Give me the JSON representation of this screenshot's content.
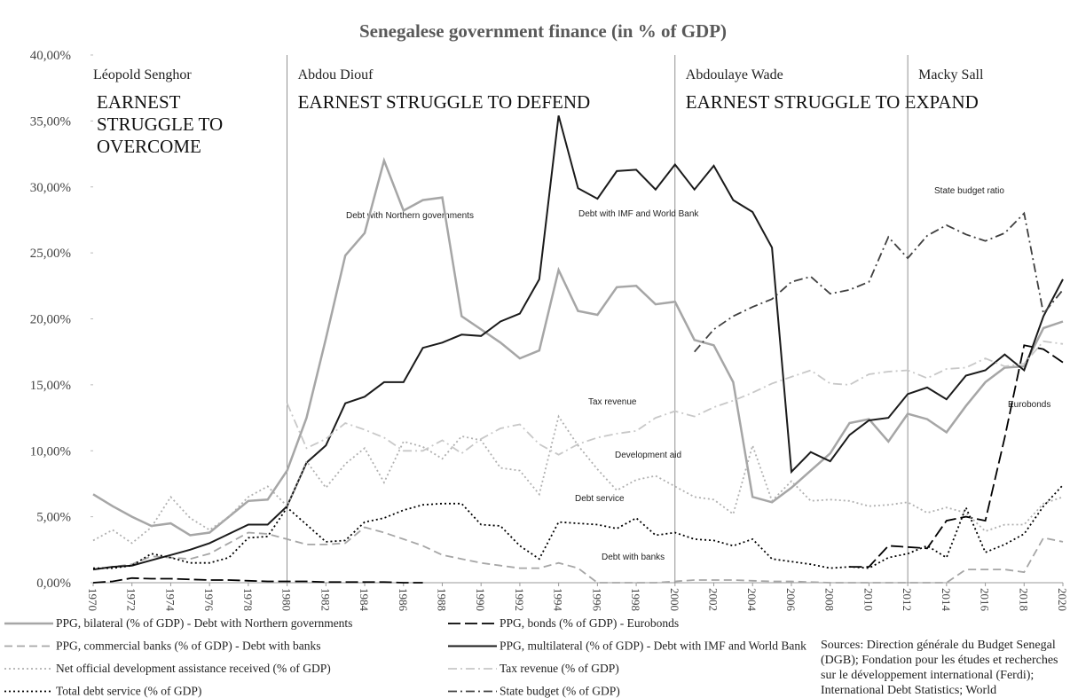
{
  "chart_data": {
    "type": "line",
    "title": "Senegalese government finance (in % of GDP)",
    "x": [
      1970,
      1971,
      1972,
      1973,
      1974,
      1975,
      1976,
      1977,
      1978,
      1979,
      1980,
      1981,
      1982,
      1983,
      1984,
      1985,
      1986,
      1987,
      1988,
      1989,
      1990,
      1991,
      1992,
      1993,
      1994,
      1995,
      1996,
      1997,
      1998,
      1999,
      2000,
      2001,
      2002,
      2003,
      2004,
      2005,
      2006,
      2007,
      2008,
      2009,
      2010,
      2011,
      2012,
      2013,
      2014,
      2015,
      2016,
      2017,
      2018,
      2019,
      2020
    ],
    "xlim": [
      1970,
      2020
    ],
    "xticks": [
      1970,
      1972,
      1974,
      1976,
      1978,
      1980,
      1982,
      1984,
      1986,
      1988,
      1990,
      1992,
      1994,
      1996,
      1998,
      2000,
      2002,
      2004,
      2006,
      2008,
      2010,
      2012,
      2014,
      2016,
      2018,
      2020
    ],
    "ylim": [
      0,
      40
    ],
    "yticks": [
      {
        "value": 0,
        "label": "0,00%"
      },
      {
        "value": 5,
        "label": "5,00%"
      },
      {
        "value": 10,
        "label": "10,00%"
      },
      {
        "value": 15,
        "label": "15,00%"
      },
      {
        "value": 20,
        "label": "20,00%"
      },
      {
        "value": 25,
        "label": "25,00%"
      },
      {
        "value": 30,
        "label": "30,00%"
      },
      {
        "value": 35,
        "label": "35,00%"
      },
      {
        "value": 40,
        "label": "40,00%"
      }
    ],
    "series": [
      {
        "name": "PPG, bilateral (% of GDP) - Debt with Northern governments",
        "color": "#a6a6a6",
        "dash": "double",
        "values": [
          6.7,
          5.8,
          5.0,
          4.3,
          4.5,
          3.6,
          3.8,
          5.0,
          6.2,
          6.3,
          8.5,
          12.5,
          18.5,
          24.8,
          26.5,
          32,
          28.2,
          29,
          29.2,
          20.2,
          19.2,
          18.2,
          17,
          17.6,
          23.7,
          20.6,
          20.3,
          22.4,
          22.5,
          21.1,
          21.3,
          18.4,
          18,
          15.2,
          6.5,
          6.1,
          7.2,
          8.5,
          9.8,
          12.1,
          12.4,
          10.7,
          12.8,
          12.4,
          11.4,
          13.4,
          15.2,
          16.3,
          16.4,
          19.3,
          19.8
        ]
      },
      {
        "name": "PPG, bonds (% of GDP) - Eurobonds",
        "color": "#000000",
        "dash": "longdash",
        "values": [
          0,
          0.1,
          0.35,
          0.3,
          0.3,
          0.25,
          0.2,
          0.2,
          0.15,
          0.1,
          0.1,
          0.1,
          0.05,
          0.05,
          0.05,
          0.05,
          0,
          0,
          null,
          null,
          null,
          null,
          null,
          null,
          null,
          null,
          null,
          null,
          null,
          null,
          null,
          null,
          null,
          null,
          null,
          null,
          null,
          null,
          null,
          1.2,
          1.2,
          2.8,
          2.7,
          2.6,
          4.7,
          5.0,
          4.7,
          11,
          18,
          17.7,
          16.7
        ]
      },
      {
        "name": "PPG, commercial banks (% of GDP) - Debt with banks",
        "color": "#a6a6a6",
        "dash": "dashed",
        "values": [
          1.0,
          1.2,
          1.4,
          2.0,
          1.9,
          1.8,
          2.2,
          3.0,
          3.8,
          3.7,
          3.3,
          2.9,
          2.9,
          3.0,
          4.2,
          3.8,
          3.3,
          2.8,
          2.1,
          1.8,
          1.5,
          1.3,
          1.1,
          1.1,
          1.5,
          1.1,
          0,
          0,
          0,
          0,
          0.1,
          0.2,
          0.2,
          0.2,
          0.15,
          0.1,
          0.1,
          0.05,
          0,
          0,
          0,
          0,
          0,
          0,
          0,
          1.0,
          1.0,
          1.0,
          0.8,
          3.4,
          3.1
        ]
      },
      {
        "name": "PPG, multilateral (% of GDP) - Debt with IMF and World Bank",
        "color": "#1a1a1a",
        "dash": "solid",
        "values": [
          1.0,
          1.2,
          1.3,
          1.7,
          2.1,
          2.5,
          3.0,
          3.7,
          4.4,
          4.4,
          5.8,
          9.1,
          10.4,
          13.6,
          14.1,
          15.2,
          15.2,
          17.8,
          18.2,
          18.8,
          18.7,
          19.8,
          20.4,
          23,
          35.4,
          29.9,
          29.1,
          31.2,
          31.3,
          29.8,
          31.7,
          29.8,
          31.6,
          29,
          28.1,
          25.4,
          8.4,
          9.9,
          9.2,
          11.2,
          12.3,
          12.5,
          14.3,
          14.8,
          13.9,
          15.7,
          16.1,
          17.3,
          16.1,
          20.2,
          23
        ]
      },
      {
        "name": "Net official development assistance received (% of GDP)",
        "color": "#b0b0b0",
        "dash": "dotted",
        "values": [
          3.2,
          4.0,
          3.0,
          4.2,
          6.5,
          4.9,
          4.0,
          5.0,
          6.5,
          7.3,
          5.8,
          9.2,
          7.2,
          9.0,
          10.2,
          7.6,
          10.7,
          10.3,
          9.4,
          11.1,
          10.8,
          8.7,
          8.5,
          6.7,
          12.6,
          10.4,
          8.6,
          7.0,
          7.8,
          8.1,
          7.3,
          6.5,
          6.3,
          5.2,
          10.4,
          6.2,
          7.7,
          6.2,
          6.3,
          6.2,
          5.8,
          5.9,
          6.1,
          5.3,
          5.7,
          5.3,
          3.9,
          4.4,
          4.4,
          6.0,
          6.5
        ]
      },
      {
        "name": "Tax revenue (% of GDP)",
        "color": "#c8c8c8",
        "dash": "dashdot",
        "values": [
          null,
          null,
          null,
          null,
          null,
          null,
          null,
          null,
          null,
          null,
          13.6,
          10.2,
          10.9,
          12.1,
          11.6,
          11.0,
          10.0,
          10.0,
          10.8,
          9.8,
          10.9,
          11.7,
          12.0,
          10.5,
          9.7,
          10.5,
          11.0,
          11.3,
          11.5,
          12.5,
          13.0,
          12.6,
          13.3,
          13.8,
          14.4,
          15.1,
          15.6,
          16.1,
          15.1,
          15.0,
          15.8,
          16.0,
          16.1,
          15.5,
          16.2,
          16.3,
          17.0,
          16.4,
          16.6,
          18.3,
          18.1
        ]
      },
      {
        "name": "Total debt service (% of GDP)",
        "color": "#000000",
        "dash": "dotted",
        "values": [
          1.1,
          1.1,
          1.3,
          2.2,
          1.9,
          1.5,
          1.5,
          1.9,
          3.4,
          3.5,
          5.7,
          4.4,
          3.1,
          3.2,
          4.6,
          4.9,
          5.5,
          5.9,
          6.0,
          6.0,
          4.4,
          4.3,
          2.8,
          1.8,
          4.6,
          4.5,
          4.4,
          4.1,
          4.9,
          3.6,
          3.8,
          3.3,
          3.2,
          2.8,
          3.3,
          1.8,
          1.6,
          1.4,
          1.1,
          1.2,
          1.1,
          1.9,
          2.2,
          2.8,
          1.9,
          5.7,
          2.3,
          2.9,
          3.7,
          5.8,
          7.4
        ]
      },
      {
        "name": "State budget (% of GDP)",
        "color": "#404040",
        "dash": "dashdot",
        "values": [
          null,
          null,
          null,
          null,
          null,
          null,
          null,
          null,
          null,
          null,
          null,
          null,
          null,
          null,
          null,
          null,
          null,
          null,
          null,
          null,
          null,
          null,
          null,
          null,
          null,
          null,
          null,
          null,
          null,
          null,
          null,
          17.5,
          19.2,
          20.2,
          20.9,
          21.5,
          22.8,
          23.2,
          21.9,
          22.2,
          22.8,
          26.2,
          24.6,
          26.3,
          27.1,
          26.4,
          25.9,
          26.5,
          28.0,
          20.4,
          22.2
        ]
      }
    ],
    "eras": [
      {
        "name": "Léopold  Senghor",
        "start": 1970,
        "slogan": [
          "EARNEST",
          "STRUGGLE TO",
          "OVERCOME"
        ]
      },
      {
        "name": "Abdou Diouf",
        "start": 1980,
        "slogan": [
          "EARNEST STRUGGLE TO DEFEND"
        ]
      },
      {
        "name": "Abdoulaye Wade",
        "start": 2000,
        "slogan": [
          "EARNEST STRUGGLE TO EXPAND"
        ]
      },
      {
        "name": "Macky Sall",
        "start": 2012,
        "slogan": []
      }
    ],
    "annotations": [
      "Debt with Northern governments",
      "Debt with IMF and World Bank",
      "State budget ratio",
      "Tax revenue",
      "Development aid",
      "Debt service",
      "Debt with banks",
      "Eurobonds"
    ],
    "source": "Sources: Direction générale du Budget Senegal (DGB); Fondation pour les études et recherches sur le développement international (Ferdi); International Debt Statistics; World Developement Indicators"
  }
}
